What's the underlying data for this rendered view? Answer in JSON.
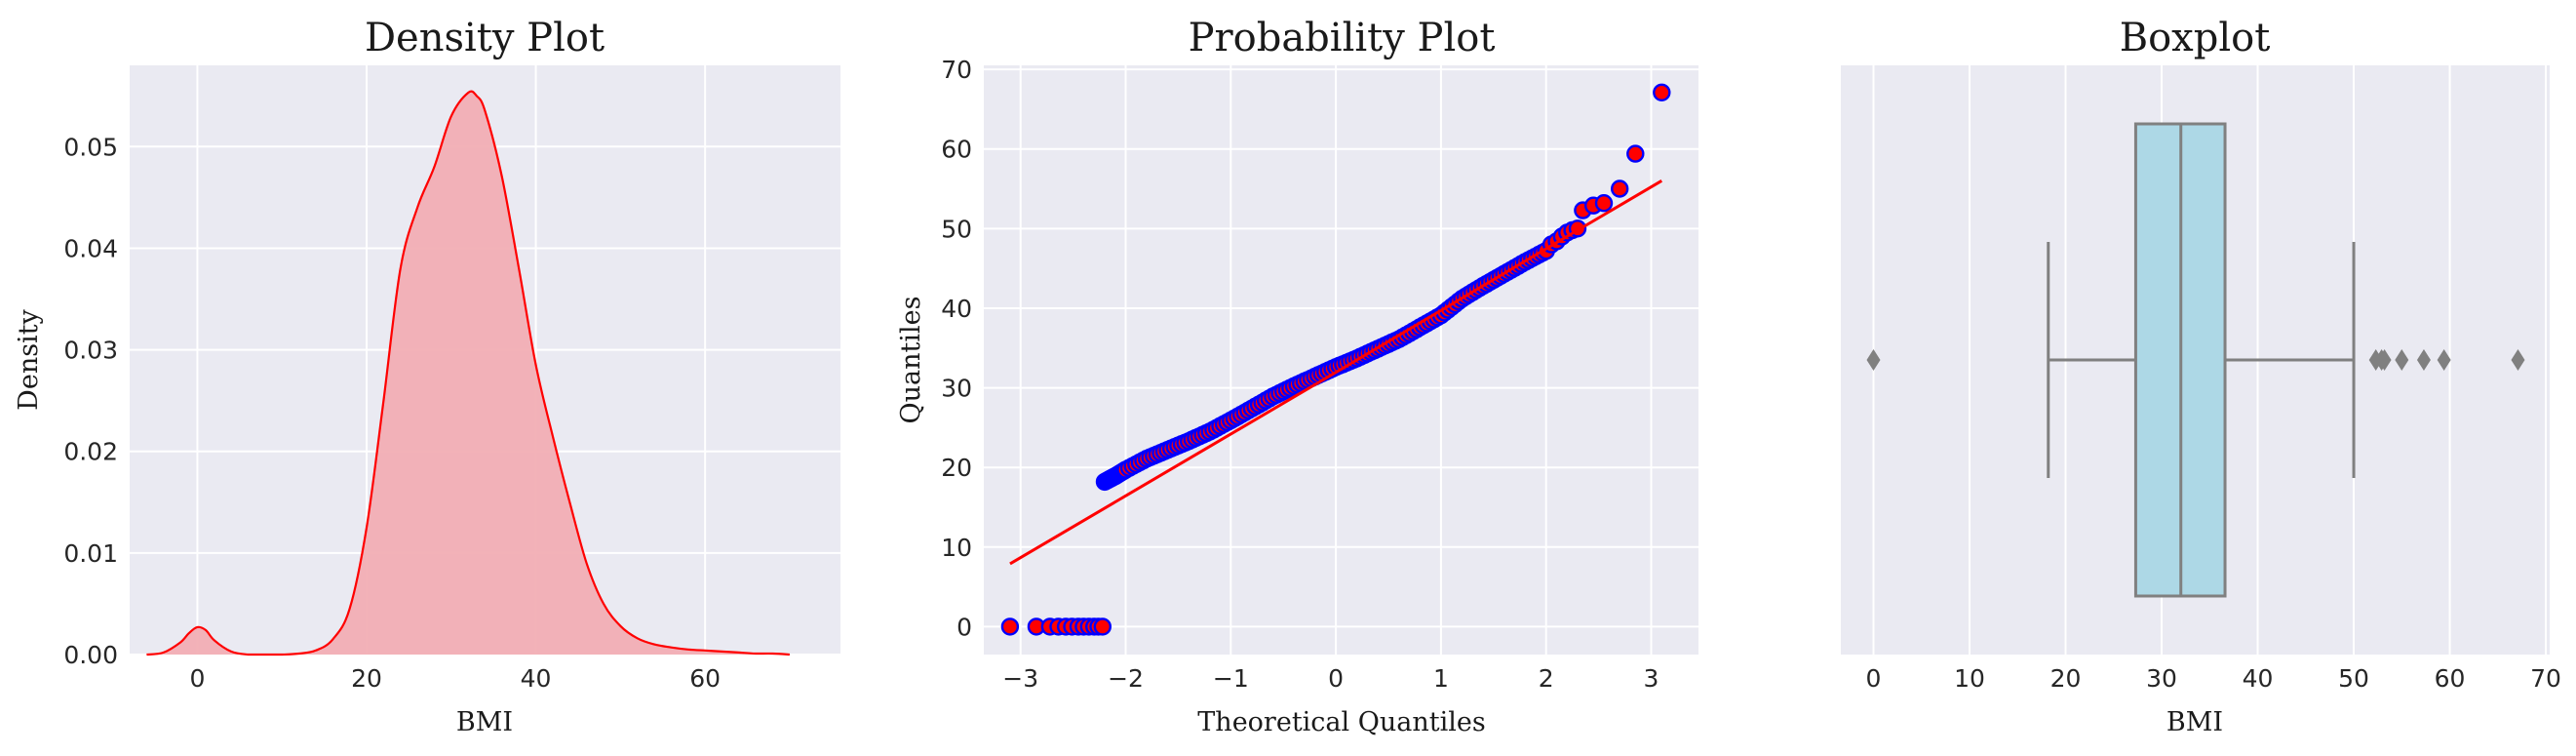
{
  "chart_data": [
    {
      "type": "area",
      "title": "Density Plot",
      "xlabel": "BMI",
      "ylabel": "Density",
      "xlim": [
        -8,
        76
      ],
      "ylim": [
        0,
        0.058
      ],
      "xticks": [
        0,
        20,
        40,
        60
      ],
      "yticks": [
        0.0,
        0.01,
        0.02,
        0.03,
        0.04,
        0.05
      ],
      "ytick_labels": [
        "0.00",
        "0.01",
        "0.02",
        "0.03",
        "0.04",
        "0.05"
      ],
      "grid": true,
      "line_color": "#ff0000",
      "fill_color": "#f2aeb4",
      "x": [
        -6,
        -4,
        -2,
        -1,
        0,
        1,
        2,
        4,
        6,
        8,
        10,
        12,
        14,
        16,
        18,
        20,
        22,
        24,
        26,
        28,
        30,
        32,
        33,
        34,
        36,
        38,
        40,
        42,
        44,
        46,
        48,
        50,
        52,
        54,
        56,
        58,
        60,
        62,
        64,
        66,
        68,
        70
      ],
      "y": [
        0.0,
        0.0002,
        0.0012,
        0.0021,
        0.0027,
        0.0024,
        0.0014,
        0.0003,
        0.0,
        0.0,
        0.0,
        0.0001,
        0.0004,
        0.0015,
        0.0045,
        0.0125,
        0.025,
        0.038,
        0.044,
        0.048,
        0.053,
        0.0553,
        0.055,
        0.0535,
        0.047,
        0.038,
        0.0285,
        0.0215,
        0.015,
        0.009,
        0.005,
        0.0028,
        0.0016,
        0.001,
        0.0007,
        0.0005,
        0.0004,
        0.0003,
        0.0002,
        0.0001,
        0.0001,
        0.0
      ]
    },
    {
      "type": "scatter",
      "title": "Probability Plot",
      "xlabel": "Theoretical Quantiles",
      "ylabel": "Quantiles",
      "xlim": [
        -3.35,
        3.45
      ],
      "ylim": [
        -3.5,
        70.5
      ],
      "xticks": [
        -3,
        -2,
        -1,
        0,
        1,
        2,
        3
      ],
      "xtick_labels": [
        "−3",
        "−2",
        "−1",
        "0",
        "1",
        "2",
        "3"
      ],
      "yticks": [
        0,
        10,
        20,
        30,
        40,
        50,
        60,
        70
      ],
      "grid": true,
      "marker_face": "#ff0000",
      "marker_edge": "#0000ff",
      "fit_line_color": "#ff0000",
      "fit_line": {
        "x": [
          -3.1,
          3.1
        ],
        "y": [
          7.9,
          56.0
        ]
      },
      "outliers": {
        "x": [
          -3.1,
          -2.85,
          -2.72,
          -2.64,
          -2.57,
          -2.51,
          -2.45,
          -2.4,
          -2.35,
          -2.3,
          -2.26,
          -2.22
        ],
        "y": [
          0,
          0,
          0,
          0,
          0,
          0,
          0,
          0,
          0,
          0,
          0,
          0
        ]
      },
      "trend": {
        "x": [
          -2.2,
          -2.1,
          -2.0,
          -1.8,
          -1.6,
          -1.4,
          -1.2,
          -1.0,
          -0.8,
          -0.6,
          -0.4,
          -0.2,
          0.0,
          0.2,
          0.4,
          0.6,
          0.8,
          1.0,
          1.2,
          1.4,
          1.6,
          1.8,
          2.0
        ],
        "y": [
          18.2,
          18.9,
          19.7,
          21.1,
          22.2,
          23.3,
          24.5,
          25.9,
          27.4,
          28.9,
          30.2,
          31.4,
          32.6,
          33.7,
          34.9,
          36.1,
          37.6,
          39.1,
          41.2,
          42.8,
          44.3,
          45.8,
          47.2
        ]
      },
      "tail": {
        "x": [
          2.05,
          2.1,
          2.15,
          2.2,
          2.25,
          2.3,
          2.35,
          2.45,
          2.55,
          2.7,
          2.85,
          3.1
        ],
        "y": [
          48.0,
          48.4,
          49.0,
          49.5,
          49.8,
          50.0,
          52.3,
          52.9,
          53.2,
          55.0,
          59.4,
          67.1
        ]
      }
    },
    {
      "type": "box",
      "title": "Boxplot",
      "xlabel": "BMI",
      "xlim": [
        -3.4,
        70.4
      ],
      "xticks": [
        0,
        10,
        20,
        30,
        40,
        50,
        60,
        70
      ],
      "grid": true,
      "box_color": "#add8e6",
      "line_color": "#808080",
      "whisker_low": 18.2,
      "q1": 27.3,
      "median": 32.0,
      "q3": 36.6,
      "whisker_high": 50.0,
      "outliers": [
        0,
        52.3,
        52.9,
        53.2,
        55.0,
        57.3,
        59.4,
        67.1
      ]
    }
  ]
}
